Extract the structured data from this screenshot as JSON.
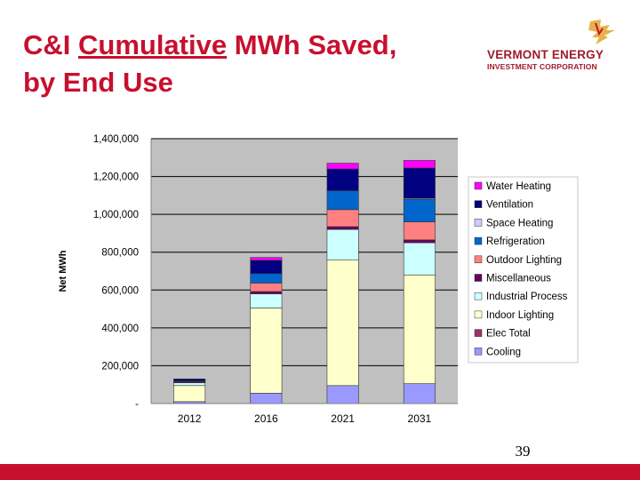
{
  "slide": {
    "title_part1": "C&I ",
    "title_underlined": "Cumulative",
    "title_part2": " MWh Saved,",
    "title_line2": "by End Use",
    "page_number": "39"
  },
  "logo": {
    "line1": "VERMONT ENERGY",
    "line2": "INVESTMENT CORPORATION"
  },
  "colors": {
    "title": "#c8102e",
    "footer": "#c8102e",
    "logo_text": "#a01a2c",
    "logo_mark": "#e8b24a",
    "plot_bg": "#c0c0c0"
  },
  "chart_data": {
    "type": "bar",
    "stacked": true,
    "title": "",
    "xlabel": "",
    "ylabel": "Net MWh",
    "ylim": [
      0,
      1400000
    ],
    "y_ticks": [
      0,
      200000,
      400000,
      600000,
      800000,
      1000000,
      1200000,
      1400000
    ],
    "y_tick_labels": [
      "-",
      "200,000",
      "400,000",
      "600,000",
      "800,000",
      "1,000,000",
      "1,200,000",
      "1,400,000"
    ],
    "grid": true,
    "legend_position": "right",
    "categories": [
      "2012",
      "2016",
      "2021",
      "2031"
    ],
    "series": [
      {
        "name": "Cooling",
        "color": "#9999ff",
        "values": [
          10000,
          55000,
          95000,
          105000
        ]
      },
      {
        "name": "Elec Total",
        "color": "#993366",
        "values": [
          0,
          0,
          0,
          0
        ]
      },
      {
        "name": "Indoor Lighting",
        "color": "#ffffcc",
        "values": [
          85000,
          450000,
          665000,
          575000
        ]
      },
      {
        "name": "Industrial Process",
        "color": "#ccffff",
        "values": [
          15000,
          75000,
          160000,
          170000
        ]
      },
      {
        "name": "Miscellaneous",
        "color": "#660066",
        "values": [
          5000,
          12000,
          15000,
          15000
        ]
      },
      {
        "name": "Outdoor Lighting",
        "color": "#ff8080",
        "values": [
          2000,
          45000,
          90000,
          95000
        ]
      },
      {
        "name": "Refrigeration",
        "color": "#0066cc",
        "values": [
          3000,
          50000,
          100000,
          120000
        ]
      },
      {
        "name": "Space Heating",
        "color": "#ccccff",
        "values": [
          0,
          0,
          0,
          5000
        ]
      },
      {
        "name": "Ventilation",
        "color": "#000080",
        "values": [
          10000,
          70000,
          115000,
          160000
        ]
      },
      {
        "name": "Water Heating",
        "color": "#ff00ff",
        "values": [
          0,
          15000,
          30000,
          40000
        ]
      }
    ]
  }
}
